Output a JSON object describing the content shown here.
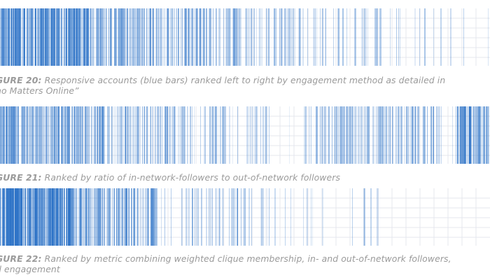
{
  "figures": [
    {
      "label": "GURE 20:",
      "text": "Responsive accounts (blue bars) ranked left to right by engagement method as detailed in",
      "text2": "ho Matters Online”"
    },
    {
      "label": "GURE 21:",
      "text": "Ranked by ratio of in-network-followers to out-of-network followers",
      "text2": ""
    },
    {
      "label": "GURE 22:",
      "text": "Ranked by metric combining weighted clique membership, in- and out-of-network followers,",
      "text2": "d engagement"
    }
  ],
  "colors": {
    "bar": "#2f74c7",
    "grid": "#e4e7ee",
    "caption": "#9a9a9a"
  },
  "chart_data": [
    {
      "type": "barcode",
      "title": "",
      "x_range": [
        0,
        1
      ],
      "grid": true,
      "segments": [
        {
          "start": 0.0,
          "end": 0.18,
          "density": 0.85,
          "intensity": 0.62
        },
        {
          "start": 0.18,
          "end": 0.35,
          "density": 0.7,
          "intensity": 0.45
        },
        {
          "start": 0.35,
          "end": 0.48,
          "density": 0.62,
          "intensity": 0.4
        },
        {
          "start": 0.48,
          "end": 0.62,
          "density": 0.45,
          "intensity": 0.34
        },
        {
          "start": 0.62,
          "end": 0.8,
          "density": 0.26,
          "intensity": 0.3
        },
        {
          "start": 0.8,
          "end": 1.0,
          "density": 0.1,
          "intensity": 0.28
        }
      ]
    },
    {
      "type": "barcode",
      "title": "",
      "x_range": [
        0,
        1
      ],
      "grid": true,
      "segments": [
        {
          "start": 0.0,
          "end": 0.22,
          "density": 0.78,
          "intensity": 0.5
        },
        {
          "start": 0.22,
          "end": 0.38,
          "density": 0.55,
          "intensity": 0.36
        },
        {
          "start": 0.38,
          "end": 0.55,
          "density": 0.3,
          "intensity": 0.28
        },
        {
          "start": 0.55,
          "end": 0.62,
          "density": 0.05,
          "intensity": 0.22
        },
        {
          "start": 0.62,
          "end": 0.9,
          "density": 0.55,
          "intensity": 0.36
        },
        {
          "start": 0.9,
          "end": 0.93,
          "density": 0.05,
          "intensity": 0.22
        },
        {
          "start": 0.93,
          "end": 1.0,
          "density": 0.8,
          "intensity": 0.58
        }
      ]
    },
    {
      "type": "barcode",
      "title": "",
      "x_range": [
        0,
        1
      ],
      "grid": true,
      "segments": [
        {
          "start": 0.0,
          "end": 0.15,
          "density": 0.92,
          "intensity": 0.72
        },
        {
          "start": 0.15,
          "end": 0.32,
          "density": 0.7,
          "intensity": 0.5
        },
        {
          "start": 0.32,
          "end": 0.5,
          "density": 0.4,
          "intensity": 0.36
        },
        {
          "start": 0.5,
          "end": 0.63,
          "density": 0.22,
          "intensity": 0.28
        },
        {
          "start": 0.63,
          "end": 0.78,
          "density": 0.08,
          "intensity": 0.22
        },
        {
          "start": 0.78,
          "end": 1.0,
          "density": 0.0,
          "intensity": 0.2
        }
      ]
    }
  ]
}
